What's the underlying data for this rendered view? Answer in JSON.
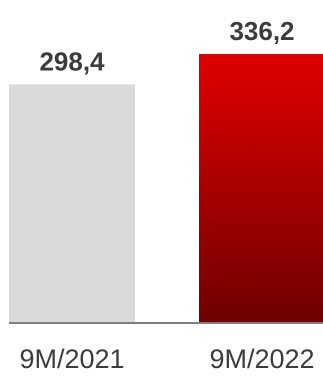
{
  "chart_data": {
    "type": "bar",
    "categories": [
      "9M/2021",
      "9M/2022"
    ],
    "values": [
      298.4,
      336.2
    ],
    "value_labels": [
      "298,4",
      "336,2"
    ],
    "title": "",
    "xlabel": "",
    "ylabel": "",
    "ylim": [
      0,
      340
    ],
    "grid": false,
    "legend": "none",
    "colors": {
      "bar_2021": "#d9d9d9",
      "bar_2022_top": "#e00000",
      "bar_2022_bottom": "#6e0000",
      "baseline": "#7f7f7f",
      "text": "#3c3c3c"
    }
  }
}
